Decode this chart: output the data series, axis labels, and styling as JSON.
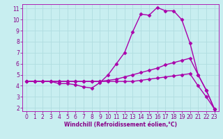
{
  "background_color": "#c8eef0",
  "grid_color": "#b0dde0",
  "line_color": "#aa00aa",
  "marker": "D",
  "markersize": 2.5,
  "linewidth": 1.0,
  "xlabel": "Windchill (Refroidissement éolien,°C)",
  "xlabel_fontsize": 5.5,
  "xlabel_color": "#880088",
  "xlim": [
    -0.5,
    23.5
  ],
  "ylim": [
    1.7,
    11.4
  ],
  "xticks": [
    0,
    1,
    2,
    3,
    4,
    5,
    6,
    7,
    8,
    9,
    10,
    11,
    12,
    13,
    14,
    15,
    16,
    17,
    18,
    19,
    20,
    21,
    22,
    23
  ],
  "yticks": [
    2,
    3,
    4,
    5,
    6,
    7,
    8,
    9,
    10,
    11
  ],
  "tick_fontsize": 5.5,
  "tick_color": "#880088",
  "curve1_x": [
    0,
    1,
    2,
    3,
    4,
    5,
    6,
    7,
    8,
    9,
    10,
    11,
    12,
    13,
    14,
    15,
    16,
    17,
    18,
    19,
    20,
    21,
    22,
    23
  ],
  "curve1_y": [
    4.4,
    4.4,
    4.4,
    4.4,
    4.2,
    4.2,
    4.1,
    3.9,
    3.8,
    4.3,
    5.0,
    6.0,
    7.0,
    8.9,
    10.5,
    10.4,
    11.1,
    10.8,
    10.8,
    10.0,
    7.9,
    5.0,
    3.6,
    1.9
  ],
  "curve2_x": [
    0,
    1,
    2,
    3,
    4,
    5,
    6,
    7,
    8,
    9,
    10,
    11,
    12,
    13,
    14,
    15,
    16,
    17,
    18,
    19,
    20,
    21,
    22,
    23
  ],
  "curve2_y": [
    4.4,
    4.4,
    4.4,
    4.4,
    4.4,
    4.4,
    4.4,
    4.4,
    4.4,
    4.4,
    4.5,
    4.6,
    4.8,
    5.0,
    5.2,
    5.4,
    5.6,
    5.9,
    6.1,
    6.3,
    6.5,
    5.0,
    3.6,
    1.9
  ],
  "curve3_x": [
    0,
    1,
    2,
    3,
    4,
    5,
    6,
    7,
    8,
    9,
    10,
    11,
    12,
    13,
    14,
    15,
    16,
    17,
    18,
    19,
    20,
    21,
    22,
    23
  ],
  "curve3_y": [
    4.4,
    4.4,
    4.4,
    4.4,
    4.4,
    4.4,
    4.4,
    4.4,
    4.4,
    4.4,
    4.4,
    4.4,
    4.4,
    4.4,
    4.5,
    4.6,
    4.7,
    4.8,
    4.9,
    5.0,
    5.1,
    4.0,
    3.0,
    1.9
  ]
}
